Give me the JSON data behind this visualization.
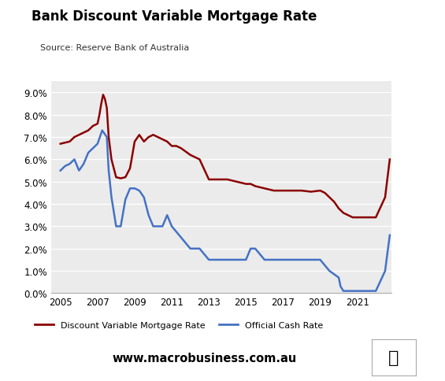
{
  "title": "Bank Discount Variable Mortgage Rate",
  "source": "Source: Reserve Bank of Australia",
  "website": "www.macrobusiness.com.au",
  "background_color": "#ffffff",
  "plot_bg_color": "#ebebeb",
  "ylim": [
    0.0,
    0.095
  ],
  "yticks": [
    0.0,
    0.01,
    0.02,
    0.03,
    0.04,
    0.05,
    0.06,
    0.07,
    0.08,
    0.09
  ],
  "ytick_labels": [
    "0.0%",
    "1.0%",
    "2.0%",
    "3.0%",
    "4.0%",
    "5.0%",
    "6.0%",
    "7.0%",
    "8.0%",
    "9.0%"
  ],
  "xlim": [
    2004.5,
    2022.85
  ],
  "xticks": [
    2005,
    2007,
    2009,
    2011,
    2013,
    2015,
    2017,
    2019,
    2021
  ],
  "mortgage_color": "#8B0000",
  "cash_color": "#4472C4",
  "legend_label_mortgage": "Discount Variable Mortgage Rate",
  "legend_label_cash": "Official Cash Rate",
  "macro_box_color": "#DD1111",
  "mortgage_x": [
    2005.0,
    2005.25,
    2005.5,
    2005.75,
    2006.0,
    2006.25,
    2006.5,
    2006.75,
    2007.0,
    2007.1,
    2007.2,
    2007.3,
    2007.4,
    2007.5,
    2007.6,
    2007.75,
    2008.0,
    2008.25,
    2008.5,
    2008.75,
    2009.0,
    2009.25,
    2009.5,
    2009.75,
    2010.0,
    2010.25,
    2010.5,
    2010.75,
    2011.0,
    2011.25,
    2011.5,
    2012.0,
    2012.5,
    2013.0,
    2013.25,
    2013.5,
    2014.0,
    2014.5,
    2015.0,
    2015.25,
    2015.5,
    2016.0,
    2016.5,
    2017.0,
    2017.5,
    2018.0,
    2018.5,
    2019.0,
    2019.25,
    2019.5,
    2019.75,
    2020.0,
    2020.25,
    2020.5,
    2020.75,
    2021.0,
    2021.25,
    2021.5,
    2022.0,
    2022.5,
    2022.75
  ],
  "mortgage_y": [
    0.067,
    0.0675,
    0.068,
    0.07,
    0.071,
    0.072,
    0.073,
    0.075,
    0.076,
    0.08,
    0.085,
    0.089,
    0.087,
    0.083,
    0.07,
    0.06,
    0.052,
    0.0515,
    0.052,
    0.056,
    0.068,
    0.071,
    0.068,
    0.07,
    0.071,
    0.07,
    0.069,
    0.068,
    0.066,
    0.066,
    0.065,
    0.062,
    0.06,
    0.051,
    0.051,
    0.051,
    0.051,
    0.05,
    0.049,
    0.049,
    0.048,
    0.047,
    0.046,
    0.046,
    0.046,
    0.046,
    0.0455,
    0.046,
    0.045,
    0.043,
    0.041,
    0.038,
    0.036,
    0.035,
    0.034,
    0.034,
    0.034,
    0.034,
    0.034,
    0.043,
    0.06
  ],
  "cash_x": [
    2005.0,
    2005.25,
    2005.5,
    2005.75,
    2006.0,
    2006.25,
    2006.5,
    2006.75,
    2007.0,
    2007.25,
    2007.5,
    2007.6,
    2007.75,
    2008.0,
    2008.25,
    2008.5,
    2008.75,
    2009.0,
    2009.25,
    2009.5,
    2009.75,
    2010.0,
    2010.25,
    2010.5,
    2010.75,
    2011.0,
    2011.5,
    2012.0,
    2012.5,
    2013.0,
    2013.5,
    2014.0,
    2014.5,
    2015.0,
    2015.25,
    2015.5,
    2016.0,
    2016.5,
    2017.0,
    2017.5,
    2018.0,
    2018.5,
    2019.0,
    2019.5,
    2020.0,
    2020.1,
    2020.25,
    2020.5,
    2020.75,
    2021.0,
    2021.5,
    2021.75,
    2022.0,
    2022.5,
    2022.75
  ],
  "cash_y": [
    0.055,
    0.057,
    0.058,
    0.06,
    0.055,
    0.058,
    0.063,
    0.065,
    0.067,
    0.073,
    0.07,
    0.055,
    0.043,
    0.03,
    0.03,
    0.042,
    0.047,
    0.047,
    0.046,
    0.043,
    0.035,
    0.03,
    0.03,
    0.03,
    0.035,
    0.03,
    0.025,
    0.02,
    0.02,
    0.015,
    0.015,
    0.015,
    0.015,
    0.015,
    0.02,
    0.02,
    0.015,
    0.015,
    0.015,
    0.015,
    0.015,
    0.015,
    0.015,
    0.01,
    0.007,
    0.003,
    0.001,
    0.001,
    0.001,
    0.001,
    0.001,
    0.001,
    0.001,
    0.01,
    0.026
  ]
}
